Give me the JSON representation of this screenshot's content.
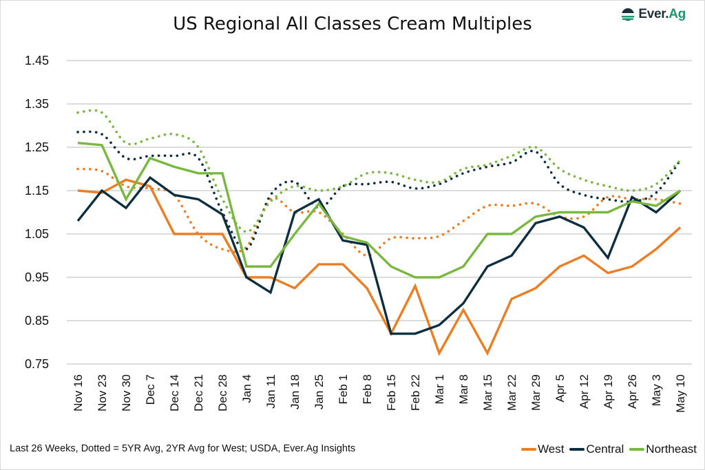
{
  "logo": {
    "brand": "Ever.",
    "brand_suffix": "Ag",
    "icon": "ever-ag-globe-icon"
  },
  "footer_note": "Last 26 Weeks, Dotted = 5YR Avg, 2YR Avg for West; USDA, Ever.Ag Insights",
  "colors": {
    "West": "#ee7d22",
    "Central": "#0d2e3f",
    "Northeast": "#78b83e",
    "grid": "#c8c8c8"
  },
  "legend": [
    {
      "name": "West",
      "color": "#ee7d22"
    },
    {
      "name": "Central",
      "color": "#0d2e3f"
    },
    {
      "name": "Northeast",
      "color": "#78b83e"
    }
  ],
  "chart_data": {
    "type": "line",
    "title": "US Regional All Classes Cream Multiples",
    "xlabel": "",
    "ylabel": "",
    "ylim": [
      0.75,
      1.45
    ],
    "yticks": [
      "1.45",
      "1.35",
      "1.25",
      "1.15",
      "1.05",
      "0.95",
      "0.85",
      "0.75"
    ],
    "ytick_values": [
      1.45,
      1.35,
      1.25,
      1.15,
      1.05,
      0.95,
      0.85,
      0.75
    ],
    "grid": true,
    "legend_position": "bottom-right",
    "categories": [
      "Nov 16",
      "Nov 23",
      "Nov 30",
      "Dec 7",
      "Dec 14",
      "Dec 21",
      "Dec 28",
      "Jan 4",
      "Jan 11",
      "Jan 18",
      "Jan 25",
      "Feb 1",
      "Feb 8",
      "Feb 15",
      "Feb 22",
      "Mar 1",
      "Mar 8",
      "Mar 15",
      "Mar 22",
      "Mar 29",
      "Apr 5",
      "Apr 12",
      "Apr 19",
      "Apr 26",
      "May 3",
      "May 10"
    ],
    "series": [
      {
        "name": "West 2YR Avg",
        "region": "West",
        "style": "dotted",
        "values": [
          1.2,
          1.195,
          1.16,
          1.155,
          1.14,
          1.05,
          1.015,
          1.02,
          1.13,
          1.1,
          1.1,
          1.05,
          1.0,
          1.04,
          1.04,
          1.045,
          1.08,
          1.115,
          1.115,
          1.12,
          1.09,
          1.09,
          1.135,
          1.13,
          1.13,
          1.12
        ]
      },
      {
        "name": "Central 5YR Avg",
        "region": "Central",
        "style": "dotted",
        "values": [
          1.285,
          1.28,
          1.225,
          1.23,
          1.23,
          1.225,
          1.1,
          1.015,
          1.14,
          1.17,
          1.11,
          1.16,
          1.165,
          1.17,
          1.155,
          1.165,
          1.19,
          1.205,
          1.215,
          1.24,
          1.165,
          1.14,
          1.13,
          1.125,
          1.145,
          1.22
        ]
      },
      {
        "name": "Northeast 5YR Avg",
        "region": "Northeast",
        "style": "dotted",
        "values": [
          1.33,
          1.33,
          1.26,
          1.27,
          1.28,
          1.25,
          1.13,
          1.055,
          1.125,
          1.16,
          1.15,
          1.16,
          1.19,
          1.19,
          1.175,
          1.17,
          1.2,
          1.21,
          1.23,
          1.25,
          1.2,
          1.175,
          1.16,
          1.15,
          1.165,
          1.22
        ]
      },
      {
        "name": "West",
        "region": "West",
        "style": "solid",
        "values": [
          1.15,
          1.145,
          1.175,
          1.16,
          1.05,
          1.05,
          1.05,
          0.95,
          0.95,
          0.925,
          0.98,
          0.98,
          0.925,
          0.82,
          0.93,
          0.775,
          0.875,
          0.775,
          0.9,
          0.925,
          0.975,
          1.0,
          0.96,
          0.975,
          1.015,
          1.065
        ]
      },
      {
        "name": "Central",
        "region": "Central",
        "style": "solid",
        "values": [
          1.08,
          1.15,
          1.11,
          1.18,
          1.14,
          1.13,
          1.095,
          0.95,
          0.915,
          1.1,
          1.13,
          1.035,
          1.025,
          0.82,
          0.82,
          0.84,
          0.89,
          0.975,
          1.0,
          1.075,
          1.09,
          1.065,
          0.995,
          1.135,
          1.1,
          1.15
        ]
      },
      {
        "name": "Northeast",
        "region": "Northeast",
        "style": "solid",
        "values": [
          1.26,
          1.255,
          1.13,
          1.225,
          1.205,
          1.19,
          1.19,
          0.975,
          0.975,
          1.05,
          1.12,
          1.045,
          1.03,
          0.975,
          0.95,
          0.95,
          0.975,
          1.05,
          1.05,
          1.09,
          1.1,
          1.1,
          1.1,
          1.125,
          1.115,
          1.15
        ]
      }
    ]
  }
}
